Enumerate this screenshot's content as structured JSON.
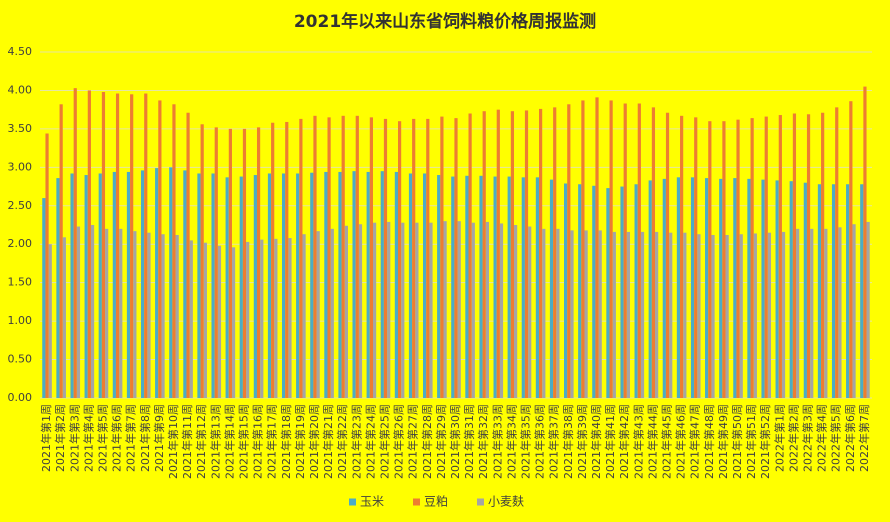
{
  "chart_data": {
    "type": "bar",
    "title": "2021年以来山东省饲料粮价格周报监测",
    "categories": [
      "2021年第1周",
      "2021年第2周",
      "2021年第3周",
      "2021年第4周",
      "2021年第5周",
      "2021年第6周",
      "2021年第7周",
      "2021年第8周",
      "2021年第9周",
      "2021年第10周",
      "2021年第11周",
      "2021年第12周",
      "2021年第13周",
      "2021年第14周",
      "2021年第15周",
      "2021年第16周",
      "2021年第17周",
      "2021年第18周",
      "2021年第19周",
      "2021年第20周",
      "2021年第21周",
      "2021年第22周",
      "2021年第23周",
      "2021年第24周",
      "2021年第25周",
      "2021年第26周",
      "2021年第27周",
      "2021年第28周",
      "2021年第29周",
      "2021年第30周",
      "2021年第31周",
      "2021年第32周",
      "2021年第33周",
      "2021年第34周",
      "2021年第35周",
      "2021年第36周",
      "2021年第37周",
      "2021年第38周",
      "2021年第39周",
      "2021年第40周",
      "2021年第41周",
      "2021年第42周",
      "2021年第43周",
      "2021年第44周",
      "2021年第45周",
      "2021年第46周",
      "2021年第47周",
      "2021年第48周",
      "2021年第49周",
      "2021年第50周",
      "2021年第51周",
      "2021年第52周",
      "2022年第1周",
      "2022年第2周",
      "2022年第3周",
      "2022年第4周",
      "2022年第5周",
      "2022年第6周",
      "2022年第7周"
    ],
    "series": [
      {
        "name": "玉米",
        "color": "#4bacc6",
        "values": [
          2.6,
          2.86,
          2.92,
          2.9,
          2.92,
          2.94,
          2.94,
          2.96,
          2.99,
          3.0,
          2.96,
          2.92,
          2.92,
          2.87,
          2.88,
          2.9,
          2.92,
          2.92,
          2.92,
          2.93,
          2.94,
          2.94,
          2.95,
          2.94,
          2.95,
          2.94,
          2.92,
          2.92,
          2.9,
          2.88,
          2.89,
          2.89,
          2.88,
          2.88,
          2.87,
          2.87,
          2.84,
          2.79,
          2.78,
          2.76,
          2.73,
          2.75,
          2.78,
          2.83,
          2.85,
          2.87,
          2.87,
          2.86,
          2.85,
          2.86,
          2.85,
          2.84,
          2.83,
          2.82,
          2.8,
          2.78,
          2.78,
          2.78,
          2.78
        ]
      },
      {
        "name": "豆粕",
        "color": "#ed7d31",
        "values": [
          3.44,
          3.82,
          4.03,
          4.0,
          3.98,
          3.96,
          3.95,
          3.96,
          3.87,
          3.82,
          3.71,
          3.56,
          3.52,
          3.5,
          3.5,
          3.52,
          3.58,
          3.59,
          3.63,
          3.67,
          3.65,
          3.67,
          3.67,
          3.65,
          3.63,
          3.6,
          3.63,
          3.63,
          3.66,
          3.64,
          3.7,
          3.73,
          3.75,
          3.73,
          3.74,
          3.76,
          3.78,
          3.82,
          3.87,
          3.91,
          3.87,
          3.83,
          3.83,
          3.78,
          3.71,
          3.67,
          3.65,
          3.6,
          3.6,
          3.62,
          3.64,
          3.66,
          3.68,
          3.7,
          3.69,
          3.71,
          3.78,
          3.86,
          4.05
        ]
      },
      {
        "name": "小麦麸",
        "color": "#a5a5a5",
        "values": [
          2.0,
          2.09,
          2.23,
          2.25,
          2.2,
          2.2,
          2.17,
          2.15,
          2.13,
          2.12,
          2.05,
          2.02,
          1.98,
          1.96,
          2.03,
          2.06,
          2.07,
          2.08,
          2.13,
          2.17,
          2.2,
          2.24,
          2.26,
          2.28,
          2.29,
          2.28,
          2.28,
          2.28,
          2.3,
          2.3,
          2.28,
          2.29,
          2.27,
          2.25,
          2.23,
          2.2,
          2.2,
          2.18,
          2.18,
          2.18,
          2.16,
          2.16,
          2.16,
          2.16,
          2.15,
          2.15,
          2.13,
          2.12,
          2.12,
          2.13,
          2.14,
          2.15,
          2.16,
          2.2,
          2.2,
          2.2,
          2.22,
          2.26,
          2.29
        ]
      }
    ],
    "ylim": [
      0,
      4.5
    ],
    "yticks": [
      {
        "value": 0,
        "label": "0.00"
      },
      {
        "value": 0.5,
        "label": "0.50"
      },
      {
        "value": 1,
        "label": "1.00"
      },
      {
        "value": 1.5,
        "label": "1.50"
      },
      {
        "value": 2,
        "label": "2.00"
      },
      {
        "value": 2.5,
        "label": "2.50"
      },
      {
        "value": 3,
        "label": "3.00"
      },
      {
        "value": 3.5,
        "label": "3.50"
      },
      {
        "value": 4,
        "label": "4.00"
      },
      {
        "value": 4.5,
        "label": "4.50"
      }
    ],
    "grid": true
  }
}
